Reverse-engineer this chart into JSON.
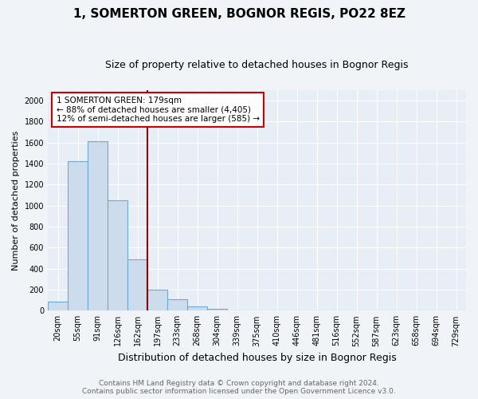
{
  "title": "1, SOMERTON GREEN, BOGNOR REGIS, PO22 8EZ",
  "subtitle": "Size of property relative to detached houses in Bognor Regis",
  "xlabel": "Distribution of detached houses by size in Bognor Regis",
  "ylabel": "Number of detached properties",
  "categories": [
    "20sqm",
    "55sqm",
    "91sqm",
    "126sqm",
    "162sqm",
    "197sqm",
    "233sqm",
    "268sqm",
    "304sqm",
    "339sqm",
    "375sqm",
    "410sqm",
    "446sqm",
    "481sqm",
    "516sqm",
    "552sqm",
    "587sqm",
    "623sqm",
    "658sqm",
    "694sqm",
    "729sqm"
  ],
  "values": [
    85,
    1420,
    1610,
    1050,
    490,
    200,
    110,
    40,
    20,
    0,
    0,
    0,
    0,
    0,
    0,
    0,
    0,
    0,
    0,
    0,
    0
  ],
  "bar_color": "#cddcec",
  "bar_edge_color": "#6fa8d0",
  "vline_color": "#8b0000",
  "vline_index": 5,
  "annotation_text": "1 SOMERTON GREEN: 179sqm\n← 88% of detached houses are smaller (4,405)\n12% of semi-detached houses are larger (585) →",
  "annotation_box_color": "white",
  "annotation_box_edge": "#cc0000",
  "ylim": [
    0,
    2100
  ],
  "yticks": [
    0,
    200,
    400,
    600,
    800,
    1000,
    1200,
    1400,
    1600,
    1800,
    2000
  ],
  "footnote": "Contains HM Land Registry data © Crown copyright and database right 2024.\nContains public sector information licensed under the Open Government Licence v3.0.",
  "background_color": "#f0f4f8",
  "plot_bg_color": "#e8eef5",
  "grid_color": "#ffffff",
  "title_fontsize": 11,
  "subtitle_fontsize": 9,
  "xlabel_fontsize": 9,
  "ylabel_fontsize": 8,
  "tick_fontsize": 7,
  "footnote_fontsize": 6.5
}
